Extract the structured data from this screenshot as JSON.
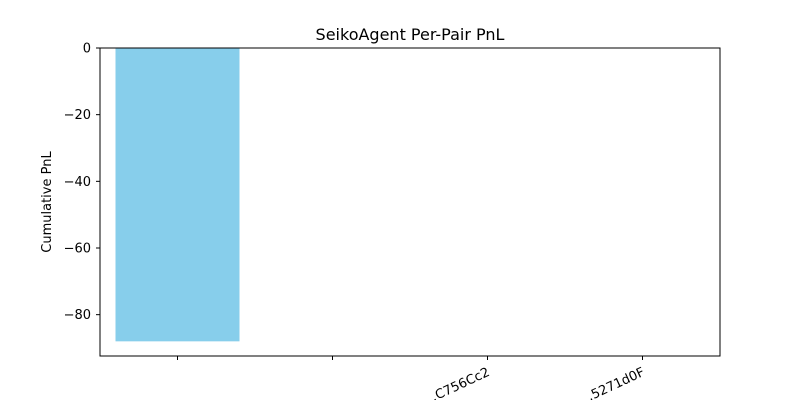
{
  "chart_data": {
    "type": "bar",
    "title": "SeikoAgent Per-Pair PnL",
    "xlabel": "",
    "ylabel": "Cumulative PnL",
    "categories": [
      "",
      "",
      "…C756Cc2",
      "…5271d0F"
    ],
    "values": [
      -88,
      0,
      0,
      0
    ],
    "ylim": [
      -92.4,
      0
    ],
    "yticks": [
      0,
      -20,
      -40,
      -60,
      -80
    ],
    "ytick_labels": [
      "0",
      "−20",
      "−40",
      "−60",
      "−80"
    ],
    "grid": false,
    "colors": {
      "bar": "#87ceeb",
      "axis": "#000000",
      "background": "#ffffff"
    }
  }
}
